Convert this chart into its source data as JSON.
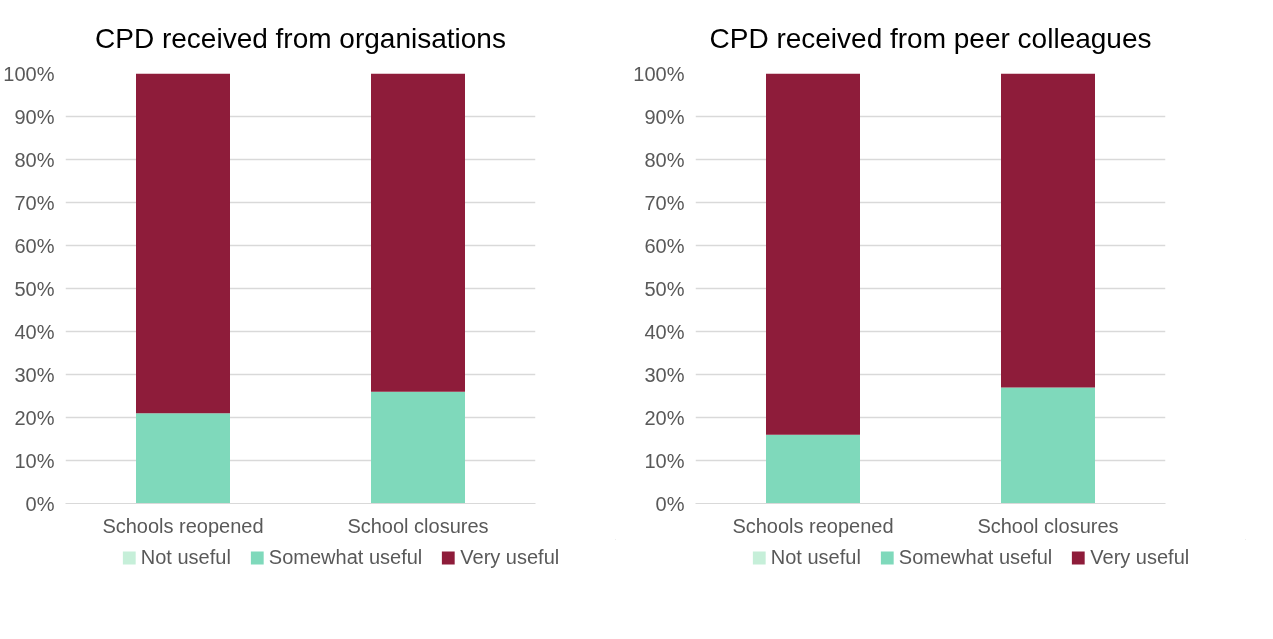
{
  "chart_data": [
    {
      "type": "bar",
      "title": "CPD received from organisations",
      "categories": [
        "Schools reopened",
        "School closures"
      ],
      "stacked": true,
      "ylim": [
        0,
        100
      ],
      "yticks": [
        {
          "value": 0,
          "label": "0%"
        },
        {
          "value": 10,
          "label": "10%"
        },
        {
          "value": 20,
          "label": "20%"
        },
        {
          "value": 30,
          "label": "30%"
        },
        {
          "value": 40,
          "label": "40%"
        },
        {
          "value": 50,
          "label": "50%"
        },
        {
          "value": 60,
          "label": "60%"
        },
        {
          "value": 70,
          "label": "70%"
        },
        {
          "value": 80,
          "label": "80%"
        },
        {
          "value": 90,
          "label": "90%"
        },
        {
          "value": 100,
          "label": "100%"
        }
      ],
      "grid": "y",
      "legend": "bottom",
      "series": [
        {
          "name": "Not useful",
          "color": "#c6efd9",
          "values": [
            0,
            0
          ]
        },
        {
          "name": "Somewhat useful",
          "color": "#7fd9bb",
          "values": [
            21,
            26
          ]
        },
        {
          "name": "Very useful",
          "color": "#8e1c3a",
          "values": [
            79,
            74
          ]
        }
      ]
    },
    {
      "type": "bar",
      "title": "CPD received from peer colleagues",
      "categories": [
        "Schools reopened",
        "School closures"
      ],
      "stacked": true,
      "ylim": [
        0,
        100
      ],
      "yticks": [
        {
          "value": 0,
          "label": "0%"
        },
        {
          "value": 10,
          "label": "10%"
        },
        {
          "value": 20,
          "label": "20%"
        },
        {
          "value": 30,
          "label": "30%"
        },
        {
          "value": 40,
          "label": "40%"
        },
        {
          "value": 50,
          "label": "50%"
        },
        {
          "value": 60,
          "label": "60%"
        },
        {
          "value": 70,
          "label": "70%"
        },
        {
          "value": 80,
          "label": "80%"
        },
        {
          "value": 90,
          "label": "90%"
        },
        {
          "value": 100,
          "label": "100%"
        }
      ],
      "grid": "y",
      "legend": "bottom",
      "series": [
        {
          "name": "Not useful",
          "color": "#c6efd9",
          "values": [
            0,
            0
          ]
        },
        {
          "name": "Somewhat useful",
          "color": "#7fd9bb",
          "values": [
            16,
            27
          ]
        },
        {
          "name": "Very useful",
          "color": "#8e1c3a",
          "values": [
            84,
            73
          ]
        }
      ]
    }
  ]
}
